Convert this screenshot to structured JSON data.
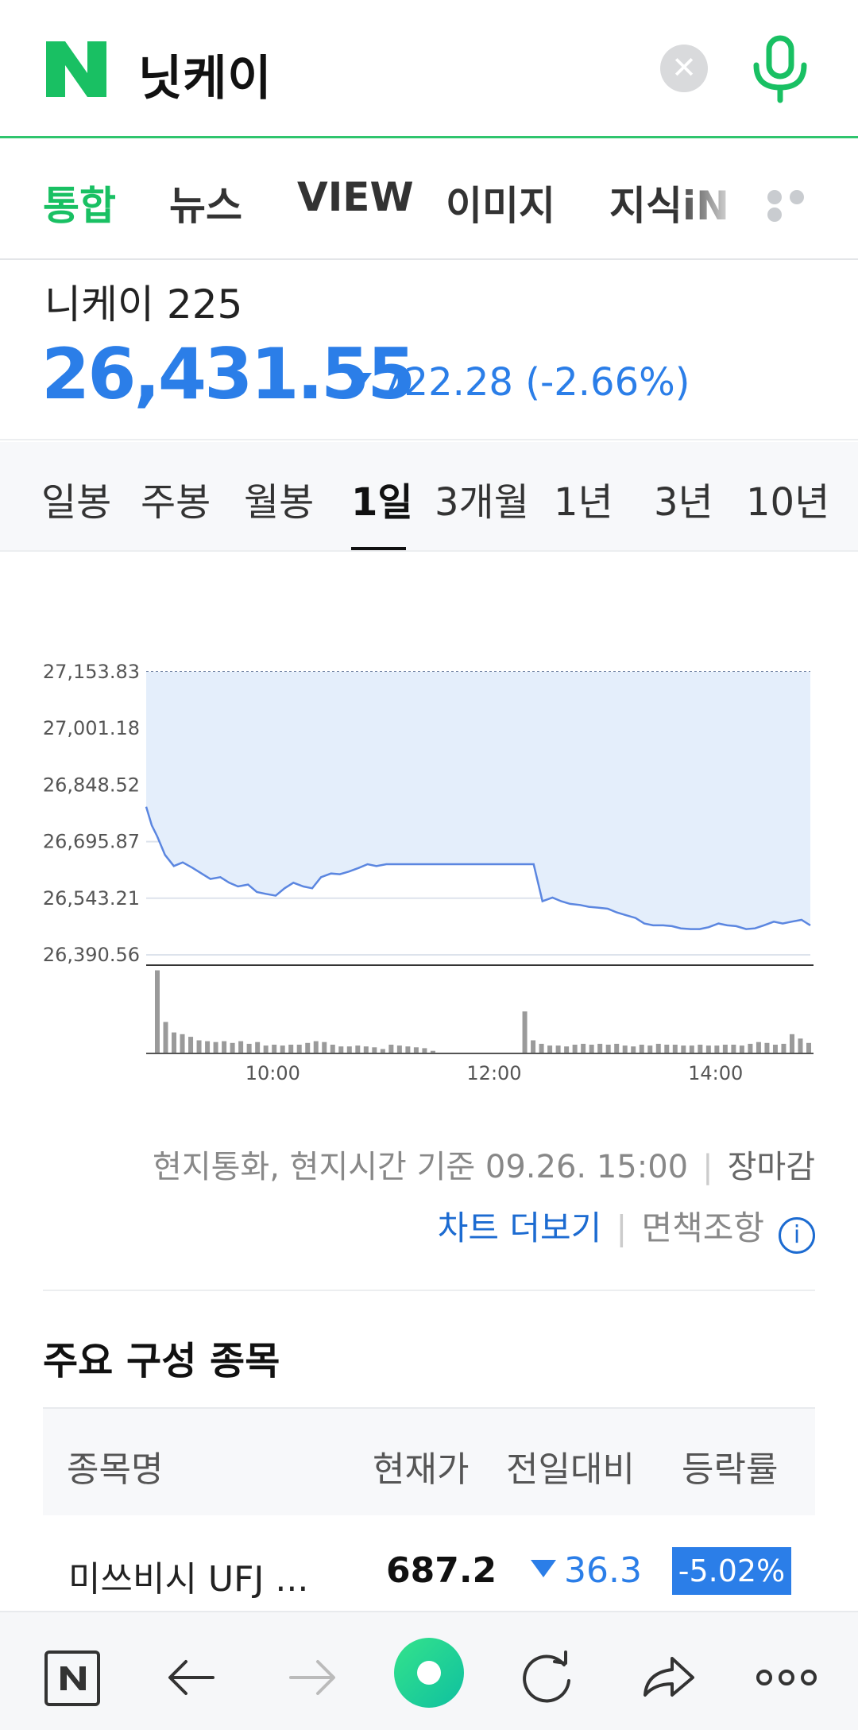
{
  "search": {
    "query": "닛케이",
    "brand_color": "#19c063",
    "logo_icon": "naver-n-logo",
    "clear_icon": "close-icon",
    "voice_icon": "microphone-icon"
  },
  "tabs": [
    {
      "label": "통합",
      "active": true
    },
    {
      "label": "뉴스",
      "active": false
    },
    {
      "label": "VIEW",
      "active": false
    },
    {
      "label": "이미지",
      "active": false
    },
    {
      "label": "지식iN",
      "active": false
    }
  ],
  "index": {
    "name": "니케이 225",
    "value": "26,431.55",
    "change": "722.28 (-2.66%)",
    "direction": "down",
    "color": "#2b7ee8"
  },
  "periods": [
    {
      "label": "일봉",
      "active": false
    },
    {
      "label": "주봉",
      "active": false
    },
    {
      "label": "월봉",
      "active": false
    },
    {
      "label": "1일",
      "active": true
    },
    {
      "label": "3개월",
      "active": false
    },
    {
      "label": "1년",
      "active": false
    },
    {
      "label": "3년",
      "active": false
    },
    {
      "label": "10년",
      "active": false
    }
  ],
  "chart_data": {
    "type": "area",
    "y_ticks": [
      "27,153.83",
      "27,001.18",
      "26,848.52",
      "26,695.87",
      "26,543.21",
      "26,390.56"
    ],
    "ylim": [
      26390.56,
      27153.83
    ],
    "x_ticks": [
      "10:00",
      "12:00",
      "14:00"
    ],
    "xlim": [
      9.0,
      15.0
    ],
    "reference_line": 27153.83,
    "grid": true,
    "series": [
      {
        "x": [
          9.0,
          9.05,
          9.1,
          9.17,
          9.25,
          9.33,
          9.42,
          9.5,
          9.58,
          9.67,
          9.75,
          9.83,
          9.92,
          10.0,
          10.08,
          10.17,
          10.25,
          10.33,
          10.42,
          10.5,
          10.58,
          10.67,
          10.75,
          10.83,
          10.92,
          11.0,
          11.08,
          11.17,
          11.25,
          11.33,
          11.42,
          11.5,
          12.0,
          12.5,
          12.58,
          12.67,
          12.75,
          12.83,
          12.92,
          13.0,
          13.08,
          13.17,
          13.25,
          13.33,
          13.42,
          13.5,
          13.58,
          13.67,
          13.75,
          13.83,
          13.92,
          14.0,
          14.08,
          14.17,
          14.25,
          14.33,
          14.42,
          14.5,
          14.58,
          14.67,
          14.75,
          14.83,
          14.92,
          15.0
        ],
        "y": [
          26790,
          26740,
          26710,
          26660,
          26630,
          26640,
          26625,
          26610,
          26595,
          26600,
          26585,
          26575,
          26580,
          26560,
          26555,
          26550,
          26570,
          26585,
          26575,
          26570,
          26600,
          26610,
          26608,
          26615,
          26625,
          26635,
          26630,
          26635,
          26635,
          26635,
          26635,
          26635,
          26635,
          26635,
          26535,
          26545,
          26535,
          26528,
          26525,
          26520,
          26518,
          26515,
          26505,
          26498,
          26490,
          26475,
          26470,
          26470,
          26468,
          26462,
          26460,
          26460,
          26465,
          26475,
          26470,
          26468,
          26460,
          26462,
          26470,
          26480,
          26475,
          26480,
          26485,
          26470
        ]
      }
    ],
    "volume": [
      0.95,
      0.36,
      0.24,
      0.22,
      0.19,
      0.15,
      0.14,
      0.13,
      0.14,
      0.12,
      0.14,
      0.11,
      0.13,
      0.09,
      0.1,
      0.09,
      0.1,
      0.1,
      0.12,
      0.14,
      0.13,
      0.1,
      0.08,
      0.08,
      0.09,
      0.08,
      0.07,
      0.05,
      0.1,
      0.09,
      0.08,
      0.07,
      0.06,
      0.03,
      0.0,
      0.0,
      0.0,
      0.0,
      0.0,
      0.0,
      0.0,
      0.0,
      0.0,
      0.0,
      0.48,
      0.15,
      0.11,
      0.09,
      0.09,
      0.08,
      0.1,
      0.11,
      0.1,
      0.11,
      0.1,
      0.11,
      0.09,
      0.08,
      0.1,
      0.09,
      0.11,
      0.1,
      0.1,
      0.09,
      0.09,
      0.1,
      0.09,
      0.09,
      0.1,
      0.1,
      0.09,
      0.11,
      0.13,
      0.12,
      0.1,
      0.11,
      0.22,
      0.17,
      0.12
    ],
    "line_color": "#5b86e0",
    "fill_color": "#e4eefb"
  },
  "meta": {
    "basis": "현지통화, 현지시간 기준 09.26. 15:00",
    "market_status": "장마감",
    "chart_more": "차트 더보기",
    "disclaimer": "면책조항",
    "info_icon": "info-icon"
  },
  "constituents": {
    "title": "주요 구성 종목",
    "headers": [
      "종목명",
      "현재가",
      "전일대비",
      "등락률"
    ],
    "rows": [
      {
        "name": "미쓰비시 UFJ ...",
        "price": "687.2",
        "change": "36.3",
        "rate": "-5.02%"
      }
    ]
  },
  "bottom_nav": {
    "icons": [
      "naver-home-icon",
      "back-arrow-icon",
      "forward-arrow-icon",
      "green-dot-icon",
      "refresh-icon",
      "share-icon",
      "more-icon"
    ]
  }
}
